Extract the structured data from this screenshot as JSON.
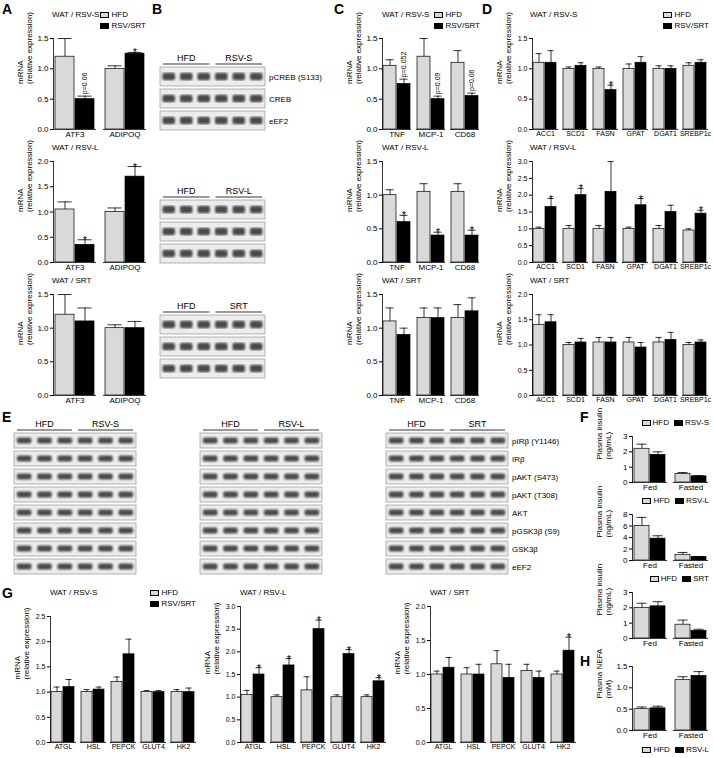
{
  "chart_data": [
    {
      "panel_label": "A",
      "type": "bar",
      "title": "WAT / RSV-S",
      "y_label": "mRNA\n(relative expression)",
      "legend": "top-right",
      "categories": [
        "ATF3",
        "ADIPOQ"
      ],
      "ylim": [
        0,
        1.5
      ],
      "yticks": [
        {
          "value": 0,
          "label": "0.0"
        },
        0.5,
        {
          "value": 1,
          "label": "1.0"
        },
        1.5
      ],
      "series": [
        {
          "name": "HFD",
          "color": "#d9d9d9",
          "values": [
            1.2,
            1.0
          ],
          "errors": [
            0.3,
            0.05
          ]
        },
        {
          "name": "RSV/SRT",
          "color": "#000000",
          "values": [
            0.5,
            1.25
          ],
          "errors": [
            0.05,
            0.02
          ],
          "annotations": [
            "p=0.06",
            "*"
          ]
        }
      ]
    },
    {
      "type": "bar",
      "title": "WAT / RSV-L",
      "y_label": "mRNA\n(relative expression)",
      "categories": [
        "ATF3",
        "ADIPOQ"
      ],
      "ylim": [
        0,
        2
      ],
      "yticks": [
        {
          "value": 0,
          "label": "0.0"
        },
        0.5,
        {
          "value": 1,
          "label": "1.0"
        },
        1.5,
        {
          "value": 2,
          "label": "2.0"
        }
      ],
      "series": [
        {
          "name": "HFD",
          "color": "#d9d9d9",
          "values": [
            1.05,
            1.0
          ],
          "errors": [
            0.15,
            0.08
          ]
        },
        {
          "name": "RSV/SRT",
          "color": "#000000",
          "values": [
            0.35,
            1.7
          ],
          "errors": [
            0.1,
            0.2
          ],
          "annotations": [
            "*",
            "*"
          ]
        }
      ]
    },
    {
      "type": "bar",
      "title": "WAT / SRT",
      "y_label": "mRNA\n(relative expression)",
      "categories": [
        "ATF3",
        "ADIPOQ"
      ],
      "ylim": [
        0,
        1.5
      ],
      "yticks": [
        {
          "value": 0,
          "label": "0.0"
        },
        0.5,
        {
          "value": 1,
          "label": "1.0"
        },
        1.5
      ],
      "series": [
        {
          "name": "HFD",
          "color": "#d9d9d9",
          "values": [
            1.2,
            1.0
          ],
          "errors": [
            0.3,
            0.05
          ]
        },
        {
          "name": "RSV/SRT",
          "color": "#000000",
          "values": [
            1.1,
            1.0
          ],
          "errors": [
            0.2,
            0.1
          ]
        }
      ]
    },
    {
      "panel_label": "C",
      "type": "bar",
      "title": "WAT / RSV-S",
      "y_label": "mRNA\n(relative expression)",
      "legend": "top-right",
      "categories": [
        "TNF",
        "MCP-1",
        "CD68"
      ],
      "ylim": [
        0,
        1.5
      ],
      "yticks": [
        {
          "value": 0,
          "label": "0.0"
        },
        0.5,
        {
          "value": 1,
          "label": "1.0"
        },
        1.5
      ],
      "series": [
        {
          "name": "HFD",
          "color": "#d9d9d9",
          "values": [
            1.05,
            1.2,
            1.1
          ],
          "errors": [
            0.1,
            0.3,
            0.2
          ]
        },
        {
          "name": "RSV/SRT",
          "color": "#000000",
          "values": [
            0.75,
            0.5,
            0.55
          ],
          "errors": [
            0.08,
            0.05,
            0.05
          ],
          "annotations": [
            "p=0.052",
            "p=0.09",
            "p=0.06"
          ]
        }
      ]
    },
    {
      "type": "bar",
      "title": "WAT / RSV-L",
      "y_label": "mRNA\n(relative expression)",
      "categories": [
        "TNF",
        "MCP-1",
        "CD68"
      ],
      "ylim": [
        0,
        1.5
      ],
      "yticks": [
        {
          "value": 0,
          "label": "0.0"
        },
        0.5,
        {
          "value": 1,
          "label": "1.0"
        },
        1.5
      ],
      "series": [
        {
          "name": "HFD",
          "color": "#d9d9d9",
          "values": [
            1.0,
            1.05,
            1.05
          ],
          "errors": [
            0.08,
            0.12,
            0.12
          ]
        },
        {
          "name": "RSV/SRT",
          "color": "#000000",
          "values": [
            0.6,
            0.4,
            0.4
          ],
          "errors": [
            0.1,
            0.05,
            0.08
          ],
          "annotations": [
            "*",
            "*",
            "*"
          ]
        }
      ]
    },
    {
      "type": "bar",
      "title": "WAT / SRT",
      "y_label": "mRNA\n(relative expression)",
      "categories": [
        "TNF",
        "MCP-1",
        "CD68"
      ],
      "ylim": [
        0,
        1.5
      ],
      "yticks": [
        {
          "value": 0,
          "label": "0.0"
        },
        0.5,
        {
          "value": 1,
          "label": "1.0"
        },
        1.5
      ],
      "series": [
        {
          "name": "HFD",
          "color": "#d9d9d9",
          "values": [
            1.1,
            1.15,
            1.15
          ],
          "errors": [
            0.2,
            0.15,
            0.2
          ]
        },
        {
          "name": "RSV/SRT",
          "color": "#000000",
          "values": [
            0.9,
            1.15,
            1.25
          ],
          "errors": [
            0.1,
            0.15,
            0.2
          ]
        }
      ]
    },
    {
      "panel_label": "D",
      "type": "bar",
      "title": "WAT / RSV-S",
      "y_label": "mRNA\n(relative expression)",
      "legend": "top-right",
      "categories": [
        "ACC1",
        "SCD1",
        "FASN",
        "GPAT",
        "DGAT1",
        "SREBP1c"
      ],
      "ylim": [
        0,
        1.5
      ],
      "yticks": [
        {
          "value": 0,
          "label": "0.0"
        },
        0.5,
        {
          "value": 1,
          "label": "1.0"
        },
        1.5
      ],
      "series": [
        {
          "name": "HFD",
          "color": "#d9d9d9",
          "values": [
            1.1,
            1.0,
            1.0,
            1.0,
            1.0,
            1.05
          ],
          "errors": [
            0.15,
            0.03,
            0.03,
            0.08,
            0.05,
            0.05
          ]
        },
        {
          "name": "RSV/SRT",
          "color": "#000000",
          "values": [
            1.1,
            1.05,
            0.65,
            1.1,
            1.0,
            1.1
          ],
          "errors": [
            0.2,
            0.05,
            0.08,
            0.1,
            0.05,
            0.05
          ],
          "annotations": [
            null,
            null,
            "*",
            null,
            null,
            null
          ]
        }
      ]
    },
    {
      "type": "bar",
      "title": "WAT / RSV-L",
      "y_label": "mRNA\n(relative expression)",
      "categories": [
        "ACC1",
        "SCD1",
        "FASN",
        "GPAT",
        "DGAT1",
        "SREBP1c"
      ],
      "ylim": [
        0,
        3
      ],
      "yticks": [
        {
          "value": 0,
          "label": "0.0"
        },
        0.5,
        {
          "value": 1,
          "label": "1.0"
        },
        1.5,
        {
          "value": 2,
          "label": "2.0"
        },
        2.5,
        {
          "value": 3,
          "label": "3.0"
        }
      ],
      "series": [
        {
          "name": "HFD",
          "color": "#d9d9d9",
          "values": [
            1.0,
            1.0,
            1.0,
            1.0,
            1.0,
            0.95
          ],
          "errors": [
            0.05,
            0.1,
            0.1,
            0.05,
            0.1,
            0.05
          ]
        },
        {
          "name": "RSV/SRT",
          "color": "#000000",
          "values": [
            1.65,
            2.0,
            2.1,
            1.7,
            1.5,
            1.45
          ],
          "errors": [
            0.25,
            0.2,
            0.9,
            0.2,
            0.2,
            0.1
          ],
          "annotations": [
            "*",
            "*",
            null,
            "*",
            null,
            "*"
          ]
        }
      ]
    },
    {
      "type": "bar",
      "title": "WAT / SRT",
      "y_label": "mRNA\n(relative expression)",
      "categories": [
        "ACC1",
        "SCD1",
        "FASN",
        "GPAT",
        "DGAT1",
        "SREBP1c"
      ],
      "ylim": [
        0,
        2
      ],
      "yticks": [
        {
          "value": 0,
          "label": "0.0"
        },
        0.5,
        {
          "value": 1,
          "label": "1.0"
        },
        1.5,
        {
          "value": 2,
          "label": "2.0"
        }
      ],
      "series": [
        {
          "name": "HFD",
          "color": "#d9d9d9",
          "values": [
            1.4,
            1.0,
            1.05,
            1.05,
            1.05,
            1.0
          ],
          "errors": [
            0.2,
            0.05,
            0.1,
            0.1,
            0.1,
            0.05
          ]
        },
        {
          "name": "RSV/SRT",
          "color": "#000000",
          "values": [
            1.45,
            1.05,
            1.05,
            0.95,
            1.1,
            1.05
          ],
          "errors": [
            0.15,
            0.08,
            0.1,
            0.1,
            0.15,
            0.05
          ]
        }
      ]
    },
    {
      "panel_label": "F",
      "type": "bar",
      "y_label": "Plasma insulin\n(ng/mL)",
      "legend": "top-right",
      "categories": [
        "Fed",
        "Fasted"
      ],
      "ylim": [
        0,
        3
      ],
      "yticks": [
        0,
        1,
        2,
        3
      ],
      "series": [
        {
          "name": "HFD",
          "color": "#d9d9d9",
          "values": [
            2.2,
            0.55
          ],
          "errors": [
            0.3,
            0.1
          ]
        },
        {
          "name": "RSV-S",
          "color": "#000000",
          "values": [
            1.8,
            0.4
          ],
          "errors": [
            0.2,
            0.05
          ]
        }
      ]
    },
    {
      "type": "bar",
      "y_label": "Plasma insulin\n(ng/mL)",
      "legend": "top-right",
      "categories": [
        "Fed",
        "Fasted"
      ],
      "ylim": [
        0,
        8
      ],
      "yticks": [
        0,
        2,
        4,
        6,
        8
      ],
      "series": [
        {
          "name": "HFD",
          "color": "#d9d9d9",
          "values": [
            6.0,
            1.0
          ],
          "errors": [
            1.5,
            0.4
          ]
        },
        {
          "name": "RSV-L",
          "color": "#000000",
          "values": [
            3.8,
            0.6
          ],
          "errors": [
            0.5,
            0.1
          ]
        }
      ]
    },
    {
      "type": "bar",
      "y_label": "Plasma insulin\n(ng/mL)",
      "legend": "top-right",
      "categories": [
        "Fed",
        "Fasted"
      ],
      "ylim": [
        0,
        3
      ],
      "yticks": [
        0,
        1,
        2,
        3
      ],
      "series": [
        {
          "name": "HFD",
          "color": "#d9d9d9",
          "values": [
            2.0,
            0.9
          ],
          "errors": [
            0.3,
            0.3
          ]
        },
        {
          "name": "SRT",
          "color": "#000000",
          "values": [
            2.1,
            0.5
          ],
          "errors": [
            0.3,
            0.1
          ]
        }
      ]
    },
    {
      "panel_label": "G",
      "type": "bar",
      "title": "WAT / RSV-S",
      "y_label": "mRNA\n(relative expression)",
      "legend": "top-right",
      "categories": [
        "ATGL",
        "HSL",
        "PEPCK",
        "GLUT4",
        "HK2"
      ],
      "ylim": [
        0,
        2.5
      ],
      "yticks": [
        {
          "value": 0,
          "label": "0.0"
        },
        0.5,
        {
          "value": 1,
          "label": "1.0"
        },
        1.5,
        {
          "value": 2,
          "label": "2.0"
        },
        2.5
      ],
      "series": [
        {
          "name": "HFD",
          "color": "#d9d9d9",
          "values": [
            1.0,
            1.0,
            1.2,
            1.0,
            1.0
          ],
          "errors": [
            0.1,
            0.05,
            0.1,
            0.03,
            0.05
          ]
        },
        {
          "name": "RSV/SRT",
          "color": "#000000",
          "values": [
            1.1,
            1.05,
            1.75,
            1.0,
            1.0
          ],
          "errors": [
            0.15,
            0.05,
            0.3,
            0.03,
            0.08
          ]
        }
      ]
    },
    {
      "type": "bar",
      "title": "WAT / RSV-L",
      "y_label": "mRNA\n(relative expression)",
      "categories": [
        "ATGL",
        "HSL",
        "PEPCK",
        "GLUT4",
        "HK2"
      ],
      "ylim": [
        0,
        3
      ],
      "yticks": [
        {
          "value": 0,
          "label": "0.0"
        },
        0.5,
        {
          "value": 1,
          "label": "1.0"
        },
        1.5,
        {
          "value": 2,
          "label": "2.0"
        },
        2.5,
        {
          "value": 3,
          "label": "3.0"
        }
      ],
      "series": [
        {
          "name": "HFD",
          "color": "#d9d9d9",
          "values": [
            1.05,
            1.0,
            1.15,
            1.0,
            1.0
          ],
          "errors": [
            0.1,
            0.05,
            0.3,
            0.05,
            0.05
          ]
        },
        {
          "name": "RSV/SRT",
          "color": "#000000",
          "values": [
            1.5,
            1.7,
            2.5,
            1.95,
            1.35
          ],
          "errors": [
            0.15,
            0.15,
            0.2,
            0.1,
            0.08
          ],
          "annotations": [
            "*",
            "*",
            "*",
            "*",
            "*"
          ]
        }
      ]
    },
    {
      "type": "bar",
      "title": "WAT / SRT",
      "y_label": "mRNA\n(relative expression)",
      "categories": [
        "ATGL",
        "HSL",
        "PEPCK",
        "GLUT4",
        "HK2"
      ],
      "ylim": [
        0,
        2
      ],
      "yticks": [
        {
          "value": 0,
          "label": "0.0"
        },
        0.5,
        {
          "value": 1,
          "label": "1.0"
        },
        1.5,
        {
          "value": 2,
          "label": "2.0"
        }
      ],
      "series": [
        {
          "name": "HFD",
          "color": "#d9d9d9",
          "values": [
            1.0,
            1.0,
            1.15,
            1.05,
            1.0
          ],
          "errors": [
            0.05,
            0.1,
            0.2,
            0.1,
            0.05
          ]
        },
        {
          "name": "RSV/SRT",
          "color": "#000000",
          "values": [
            1.1,
            1.0,
            0.95,
            0.95,
            1.35
          ],
          "errors": [
            0.15,
            0.15,
            0.2,
            0.1,
            0.2
          ],
          "annotations": [
            null,
            null,
            null,
            null,
            "*"
          ]
        }
      ]
    },
    {
      "panel_label": "H",
      "type": "bar",
      "y_label": "Plasma NEFA\n(mM)",
      "legend": "bottom-right",
      "categories": [
        "Fed",
        "Fasted"
      ],
      "ylim": [
        0,
        1.5
      ],
      "yticks": [
        {
          "value": 0,
          "label": "0.0"
        },
        0.5,
        {
          "value": 1,
          "label": "1.0"
        },
        1.5
      ],
      "series": [
        {
          "name": "HFD",
          "color": "#d9d9d9",
          "values": [
            0.5,
            1.18
          ],
          "errors": [
            0.05,
            0.08
          ]
        },
        {
          "name": "RSV-L",
          "color": "#000000",
          "values": [
            0.52,
            1.28
          ],
          "errors": [
            0.05,
            0.1
          ]
        }
      ]
    }
  ],
  "blots": [
    {
      "panel_label": "B",
      "row_labels": [
        "pCREB (S133)",
        "CREB",
        "eEF2"
      ],
      "blots": [
        {
          "groups": [
            "HFD",
            "RSV-S"
          ]
        },
        {
          "groups": [
            "HFD",
            "RSV-L"
          ]
        },
        {
          "groups": [
            "HFD",
            "SRT"
          ]
        }
      ]
    },
    {
      "panel_label": "E",
      "row_labels": [
        "pIRβ (Y1146)",
        "IRβ",
        "pAKT (S473)",
        "pAKT (T308)",
        "AKT",
        "pGSK3β (S9)",
        "GSK3β",
        "eEF2"
      ],
      "blots": [
        {
          "groups": [
            "HFD",
            "RSV-S"
          ]
        },
        {
          "groups": [
            "HFD",
            "RSV-L"
          ]
        },
        {
          "groups": [
            "HFD",
            "SRT"
          ]
        }
      ]
    }
  ]
}
